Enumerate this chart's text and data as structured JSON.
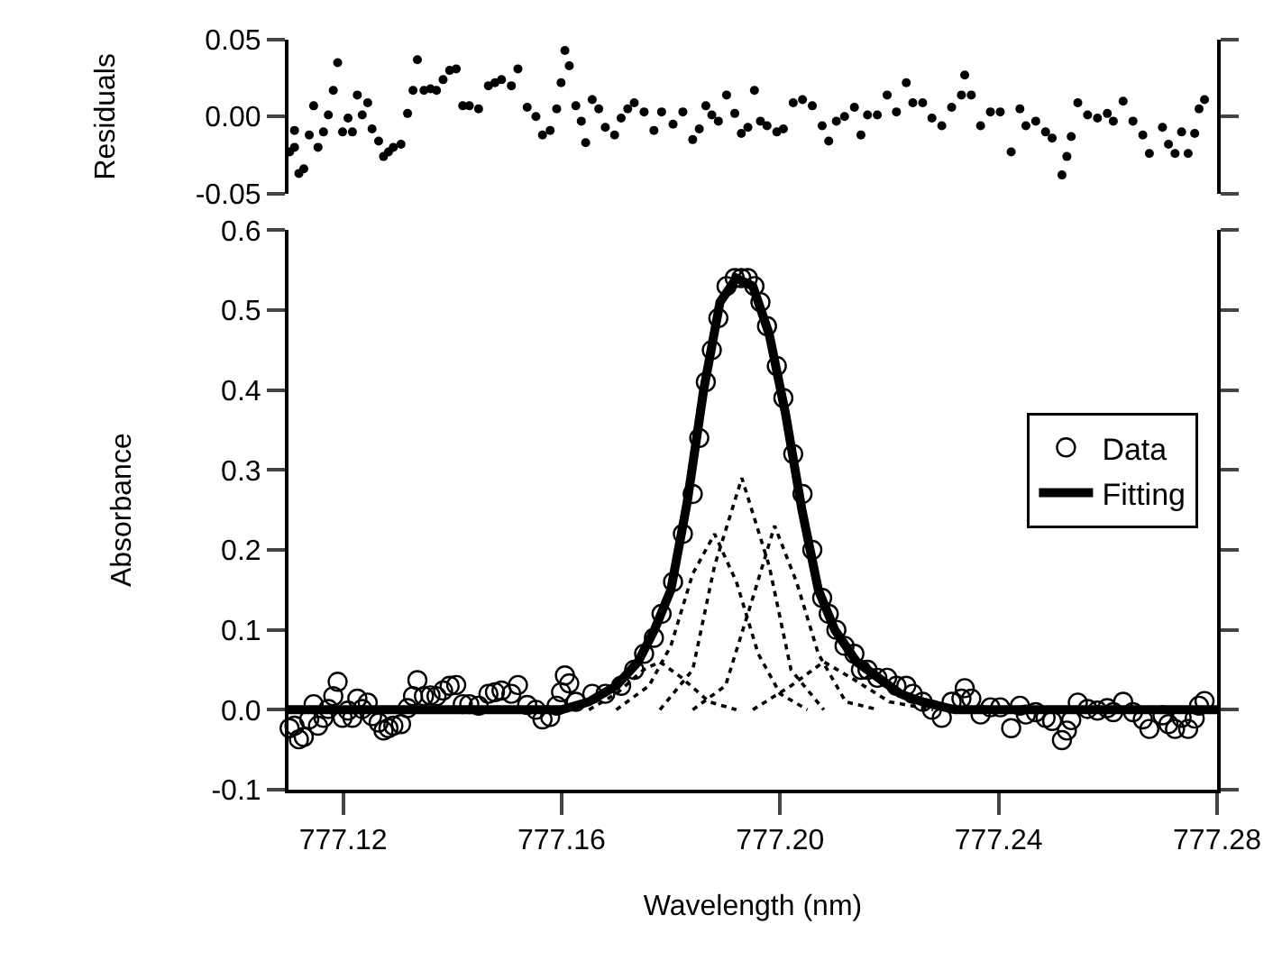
{
  "chart_data": [
    {
      "type": "scatter",
      "ylabel": "Residuals",
      "xlim": [
        777.11,
        777.28
      ],
      "ylim": [
        -0.05,
        0.05
      ],
      "yticks": [
        0.05,
        {
          "value": 0,
          "label": "0.00"
        },
        -0.05
      ],
      "tick_labels": "y",
      "legend": false,
      "marker": "circle",
      "series": [
        {
          "color": "#000000",
          "x": [
            777.1102,
            777.1111,
            777.1111,
            777.1119,
            777.1128,
            777.1138,
            777.1146,
            777.1154,
            777.1164,
            777.1173,
            777.1182,
            777.119,
            777.1199,
            777.1209,
            777.1217,
            777.1226,
            777.1235,
            777.1245,
            777.1253,
            777.1265,
            777.1274,
            777.1283,
            777.1292,
            777.1306,
            777.1318,
            777.1328,
            777.1336,
            777.1348,
            777.136,
            777.1371,
            777.1383,
            777.1395,
            777.1407,
            777.1419,
            777.1431,
            777.1448,
            777.1466,
            777.1478,
            777.149,
            777.1508,
            777.152,
            777.1537,
            777.1553,
            777.1565,
            777.1579,
            777.1591,
            777.1599,
            777.1606,
            777.1614,
            777.1626,
            777.1636,
            777.1644,
            777.1656,
            777.1668,
            777.168,
            777.1697,
            777.1709,
            777.1721,
            777.1733,
            777.1751,
            777.1769,
            777.1783,
            777.1804,
            777.1822,
            777.184,
            777.1852,
            777.1864,
            777.1875,
            777.1887,
            777.1902,
            777.1917,
            777.1929,
            777.1941,
            777.1953,
            777.1964,
            777.1976,
            777.1994,
            777.2006,
            777.2024,
            777.2041,
            777.2059,
            777.2077,
            777.2089,
            777.2103,
            777.2118,
            777.2136,
            777.2148,
            777.216,
            777.2178,
            777.2196,
            777.2213,
            777.2231,
            777.2243,
            777.2261,
            777.2278,
            777.2296,
            777.2314,
            777.2332,
            777.2338,
            777.235,
            777.2367,
            777.2385,
            777.2403,
            777.2423,
            777.2439,
            777.245,
            777.2468,
            777.2486,
            777.2498,
            777.2516,
            777.2525,
            777.2533,
            777.2545,
            777.2563,
            777.2581,
            777.2599,
            777.261,
            777.2628,
            777.2646,
            777.2664,
            777.2676,
            777.27,
            777.2711,
            777.2723,
            777.2735,
            777.2747,
            777.2759,
            777.2767,
            777.2777
          ],
          "values": [
            -0.023,
            -0.02,
            -0.009,
            -0.037,
            -0.034,
            -0.012,
            0.007,
            -0.02,
            -0.01,
            0.001,
            0.017,
            0.035,
            -0.01,
            -0.001,
            -0.01,
            0.014,
            0.001,
            0.009,
            -0.008,
            -0.016,
            -0.026,
            -0.023,
            -0.02,
            -0.018,
            0.002,
            0.017,
            0.037,
            0.017,
            0.018,
            0.017,
            0.024,
            0.03,
            0.031,
            0.007,
            0.007,
            0.005,
            0.02,
            0.022,
            0.024,
            0.02,
            0.031,
            0.006,
            0.0,
            -0.012,
            -0.009,
            0.005,
            0.022,
            0.043,
            0.033,
            0.007,
            -0.003,
            -0.017,
            0.011,
            0.005,
            -0.007,
            -0.012,
            -0.001,
            0.005,
            0.009,
            0.003,
            -0.009,
            0.003,
            -0.005,
            0.003,
            -0.015,
            -0.008,
            0.007,
            0.001,
            -0.003,
            0.014,
            0.002,
            -0.011,
            -0.007,
            0.017,
            -0.003,
            -0.006,
            -0.01,
            -0.008,
            0.009,
            0.011,
            0.007,
            -0.006,
            -0.016,
            -0.003,
            0.0,
            0.006,
            -0.012,
            0.001,
            0.001,
            0.014,
            0.003,
            0.022,
            0.009,
            0.009,
            -0.001,
            -0.006,
            0.006,
            0.014,
            0.027,
            0.014,
            -0.006,
            0.003,
            0.003,
            -0.023,
            0.005,
            -0.006,
            -0.003,
            -0.01,
            -0.014,
            -0.038,
            -0.026,
            -0.013,
            0.009,
            0.001,
            -0.001,
            0.002,
            -0.003,
            0.01,
            -0.003,
            -0.012,
            -0.024,
            -0.007,
            -0.018,
            -0.024,
            -0.01,
            -0.024,
            -0.011,
            0.005,
            0.011
          ]
        }
      ]
    },
    {
      "type": "line",
      "xlabel": "Wavelength (nm)",
      "ylabel": "Absorbance",
      "xlim": [
        777.11,
        777.28
      ],
      "xticks": [
        777.12,
        777.16,
        {
          "value": 777.2,
          "label": "777.20"
        },
        777.24,
        777.28
      ],
      "ylim": [
        -0.1,
        0.6
      ],
      "yticks": [
        -0.1,
        {
          "value": 0,
          "label": "0.0"
        },
        0.1,
        0.2,
        0.3,
        0.4,
        0.5,
        0.6
      ],
      "legend": "right",
      "series": [
        {
          "color": "#000000",
          "line_style": "dotted",
          "x": [
            777.165,
            777.17,
            777.175,
            777.178,
            777.182,
            777.187,
            777.192
          ],
          "values": [
            0,
            0.02,
            0.05,
            0.06,
            0.04,
            0.01,
            0
          ]
        },
        {
          "color": "#000000",
          "line_style": "dotted",
          "x": [
            777.17,
            777.176,
            777.18,
            777.184,
            777.188,
            777.192,
            777.196,
            777.2,
            777.205
          ],
          "values": [
            0,
            0.03,
            0.08,
            0.17,
            0.22,
            0.16,
            0.07,
            0.02,
            0
          ]
        },
        {
          "color": "#000000",
          "line_style": "dotted",
          "x": [
            777.178,
            777.184,
            777.188,
            777.193,
            777.198,
            777.202,
            777.208
          ],
          "values": [
            0,
            0.05,
            0.18,
            0.29,
            0.18,
            0.05,
            0
          ]
        },
        {
          "color": "#000000",
          "line_style": "dotted",
          "x": [
            777.184,
            777.19,
            777.195,
            777.199,
            777.203,
            777.207,
            777.212,
            777.218
          ],
          "values": [
            0,
            0.03,
            0.14,
            0.23,
            0.16,
            0.07,
            0.01,
            0
          ]
        },
        {
          "color": "#000000",
          "line_style": "dotted",
          "x": [
            777.195,
            777.202,
            777.208,
            777.213,
            777.22,
            777.228
          ],
          "values": [
            0,
            0.03,
            0.06,
            0.04,
            0.01,
            0
          ]
        },
        {
          "name": "Data",
          "type": "scatter",
          "marker": "circle",
          "color": "#000000",
          "x": [
            777.1102,
            777.1111,
            777.1119,
            777.1128,
            777.1138,
            777.1146,
            777.1154,
            777.1164,
            777.1173,
            777.1182,
            777.119,
            777.1199,
            777.1209,
            777.1217,
            777.1226,
            777.1235,
            777.1245,
            777.1253,
            777.1265,
            777.1274,
            777.1283,
            777.1292,
            777.1306,
            777.1318,
            777.1328,
            777.1336,
            777.1348,
            777.136,
            777.1371,
            777.1383,
            777.1395,
            777.1407,
            777.1419,
            777.1431,
            777.1448,
            777.1466,
            777.1478,
            777.149,
            777.1508,
            777.152,
            777.1537,
            777.1553,
            777.1565,
            777.1579,
            777.1591,
            777.1599,
            777.1606,
            777.1614,
            777.1626,
            777.1656,
            777.168,
            777.1709,
            777.1733,
            777.1751,
            777.1769,
            777.1783,
            777.1804,
            777.1822,
            777.184,
            777.1852,
            777.1864,
            777.1875,
            777.1887,
            777.1902,
            777.1917,
            777.1929,
            777.1941,
            777.1953,
            777.1964,
            777.1976,
            777.1994,
            777.2006,
            777.2024,
            777.2041,
            777.2059,
            777.2077,
            777.2089,
            777.2103,
            777.2118,
            777.2136,
            777.2148,
            777.216,
            777.2178,
            777.2196,
            777.2213,
            777.2231,
            777.2243,
            777.2261,
            777.2278,
            777.2296,
            777.2314,
            777.2332,
            777.2338,
            777.235,
            777.2367,
            777.2385,
            777.2403,
            777.2423,
            777.2439,
            777.245,
            777.2468,
            777.2486,
            777.2498,
            777.2516,
            777.2525,
            777.2533,
            777.2545,
            777.2563,
            777.2581,
            777.2599,
            777.261,
            777.2628,
            777.2646,
            777.2664,
            777.2676,
            777.27,
            777.2711,
            777.2723,
            777.2735,
            777.2747,
            777.2759,
            777.2767,
            777.2777
          ],
          "values": [
            -0.023,
            -0.02,
            -0.037,
            -0.034,
            -0.012,
            0.007,
            -0.02,
            -0.01,
            0.001,
            0.017,
            0.035,
            -0.01,
            -0.001,
            -0.01,
            0.014,
            0.001,
            0.009,
            -0.008,
            -0.016,
            -0.026,
            -0.023,
            -0.02,
            -0.018,
            0.002,
            0.017,
            0.037,
            0.017,
            0.018,
            0.017,
            0.024,
            0.03,
            0.031,
            0.007,
            0.007,
            0.005,
            0.02,
            0.022,
            0.024,
            0.02,
            0.031,
            0.006,
            0,
            -0.012,
            -0.009,
            0.005,
            0.022,
            0.043,
            0.033,
            0.01,
            0.02,
            0.02,
            0.03,
            0.05,
            0.07,
            0.09,
            0.12,
            0.16,
            0.22,
            0.27,
            0.34,
            0.41,
            0.45,
            0.49,
            0.53,
            0.54,
            0.54,
            0.54,
            0.53,
            0.51,
            0.48,
            0.43,
            0.39,
            0.32,
            0.27,
            0.2,
            0.14,
            0.12,
            0.1,
            0.08,
            0.07,
            0.05,
            0.05,
            0.04,
            0.04,
            0.03,
            0.03,
            0.02,
            0.01,
            0,
            -0.01,
            0.01,
            0.014,
            0.027,
            0.014,
            -0.006,
            0.003,
            0.003,
            -0.023,
            0.005,
            -0.006,
            -0.003,
            -0.01,
            -0.014,
            -0.038,
            -0.026,
            -0.013,
            0.009,
            0.001,
            -0.001,
            0.002,
            -0.003,
            0.01,
            -0.003,
            -0.012,
            -0.024,
            -0.007,
            -0.018,
            -0.024,
            -0.01,
            -0.024,
            -0.011,
            0.005,
            0.011
          ]
        },
        {
          "name": "Fitting",
          "color": "#000000",
          "line_style": "solid",
          "x": [
            777.11,
            777.16,
            777.165,
            777.17,
            777.174,
            777.177,
            777.18,
            777.183,
            777.186,
            777.189,
            777.192,
            777.195,
            777.198,
            777.201,
            777.204,
            777.207,
            777.21,
            777.214,
            777.218,
            777.222,
            777.226,
            777.232,
            777.28
          ],
          "values": [
            0,
            0,
            0.01,
            0.03,
            0.06,
            0.1,
            0.15,
            0.26,
            0.4,
            0.51,
            0.54,
            0.53,
            0.47,
            0.37,
            0.25,
            0.15,
            0.1,
            0.06,
            0.04,
            0.02,
            0.01,
            0,
            0
          ]
        }
      ]
    }
  ]
}
